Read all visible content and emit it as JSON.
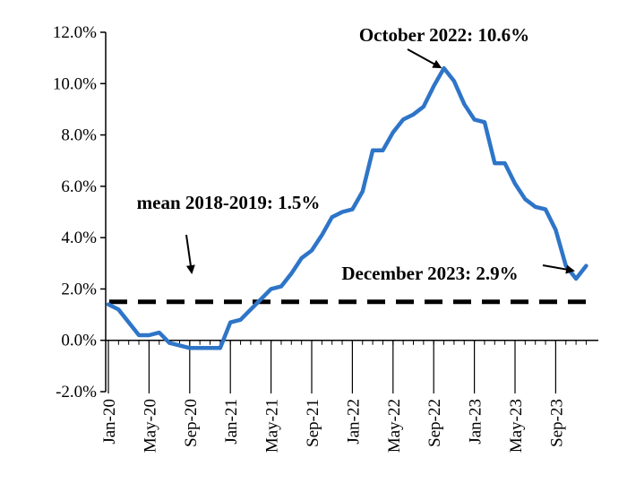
{
  "chart_data": {
    "type": "line",
    "title": "",
    "xlabel": "",
    "ylabel": "",
    "ylim": [
      -2,
      12
    ],
    "y_ticks": [
      -2,
      0,
      2,
      4,
      6,
      8,
      10,
      12
    ],
    "y_tick_labels": [
      "-2.0%",
      "0.0%",
      "2.0%",
      "4.0%",
      "6.0%",
      "8.0%",
      "10.0%",
      "12.0%"
    ],
    "x_tick_labels": [
      "Jan-20",
      "May-20",
      "Sep-20",
      "Jan-21",
      "May-21",
      "Sep-21",
      "Jan-22",
      "May-22",
      "Sep-22",
      "Jan-23",
      "May-23",
      "Sep-23"
    ],
    "x_tick_indices": [
      0,
      4,
      8,
      12,
      16,
      20,
      24,
      28,
      32,
      36,
      40,
      44
    ],
    "grid": false,
    "legend": "none",
    "series": [
      {
        "color": "#2e75c8",
        "values": [
          1.4,
          1.2,
          0.7,
          0.2,
          0.2,
          0.3,
          -0.1,
          -0.2,
          -0.3,
          -0.3,
          -0.3,
          -0.3,
          0.7,
          0.8,
          1.2,
          1.6,
          2.0,
          2.1,
          2.6,
          3.2,
          3.5,
          4.1,
          4.8,
          5.0,
          5.1,
          5.8,
          7.4,
          7.4,
          8.1,
          8.6,
          8.8,
          9.1,
          9.9,
          10.6,
          10.1,
          9.2,
          8.6,
          8.5,
          6.9,
          6.9,
          6.1,
          5.5,
          5.2,
          5.1,
          4.3,
          2.9,
          2.4,
          2.9
        ]
      }
    ],
    "reference_line": {
      "value": 1.5,
      "style": "dashed",
      "color": "#000000"
    },
    "annotations": [
      {
        "text": "October 2022: 10.6%",
        "index": 33,
        "value": 10.6
      },
      {
        "text": "December 2023: 2.9%",
        "index": 47,
        "value": 2.9
      },
      {
        "text": "mean 2018-2019: 1.5%",
        "index": 3,
        "value": 1.5
      }
    ]
  }
}
